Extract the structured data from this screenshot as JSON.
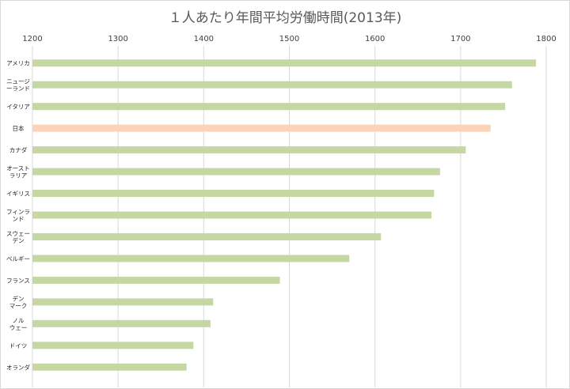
{
  "chart_data": {
    "type": "bar",
    "orientation": "horizontal",
    "title": "１人あたり年間平均労働時間(2013年)",
    "xlabel": "",
    "ylabel": "",
    "xlim": [
      1200,
      1800
    ],
    "xticks": [
      1200,
      1300,
      1400,
      1500,
      1600,
      1700,
      1800
    ],
    "xaxis_position": "top",
    "grid": true,
    "legend": "none",
    "categories": [
      {
        "lines": [
          "アメリカ"
        ]
      },
      {
        "lines": [
          "ニュージ",
          "ーランド"
        ]
      },
      {
        "lines": [
          "イタリア"
        ]
      },
      {
        "lines": [
          "日本"
        ]
      },
      {
        "lines": [
          "カナダ"
        ]
      },
      {
        "lines": [
          "オースト",
          "ラリア"
        ]
      },
      {
        "lines": [
          "イギリス"
        ]
      },
      {
        "lines": [
          "フィンラ",
          "ンド"
        ]
      },
      {
        "lines": [
          "スウェー",
          "デン"
        ]
      },
      {
        "lines": [
          "ベルギー"
        ]
      },
      {
        "lines": [
          "フランス"
        ]
      },
      {
        "lines": [
          "デン",
          "マーク"
        ]
      },
      {
        "lines": [
          "ノル",
          "ウェー"
        ]
      },
      {
        "lines": [
          "ドイツ"
        ]
      },
      {
        "lines": [
          "オランダ"
        ]
      }
    ],
    "values": [
      1788,
      1760,
      1752,
      1735,
      1706,
      1676,
      1669,
      1666,
      1607,
      1570,
      1489,
      1411,
      1408,
      1388,
      1380
    ],
    "colors": {
      "default": "#c5d8a4",
      "highlight": "#fbd3b8"
    },
    "highlight_index": 3
  }
}
